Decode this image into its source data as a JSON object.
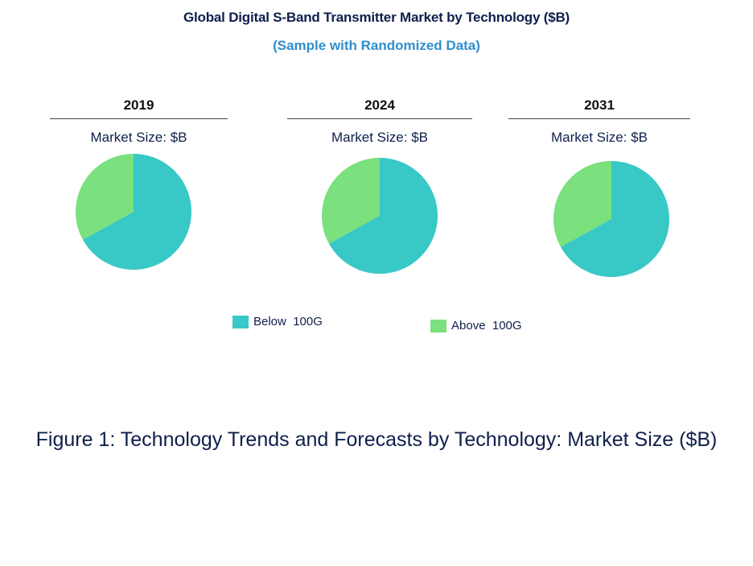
{
  "chart_data": {
    "type": "pie",
    "title": "Global Digital S-Band Transmitter Market by Technology ($B)",
    "subtitle": "(Sample with Randomized Data)",
    "series_names": [
      "Below  100G",
      "Above  100G"
    ],
    "colors": [
      "#38c8c6",
      "#7be07e"
    ],
    "panels": [
      {
        "year": "2019",
        "label": "Market Size: $B",
        "values": [
          0.67,
          0.33
        ]
      },
      {
        "year": "2024",
        "label": "Market Size: $B",
        "values": [
          0.67,
          0.33
        ]
      },
      {
        "year": "2031",
        "label": "Market Size: $B",
        "values": [
          0.67,
          0.33
        ]
      }
    ],
    "legend_position": "bottom"
  },
  "caption": "Figure 1: Technology Trends and Forecasts by Technology: Market Size ($B)"
}
